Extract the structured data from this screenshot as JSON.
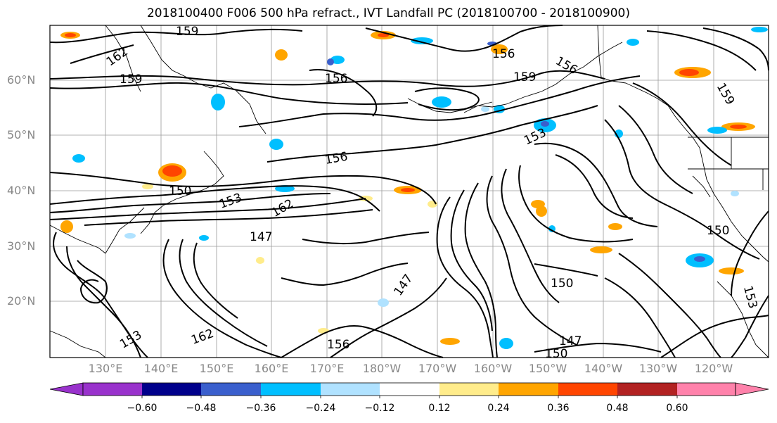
{
  "title": "2018100400 F006 500 hPa refract., IVT Landfall PC (2018100700 - 2018100900)",
  "lat_labels": [
    "60°N",
    "50°N",
    "40°N",
    "30°N",
    "20°N"
  ],
  "lon_labels": [
    "130°E",
    "140°E",
    "150°E",
    "160°E",
    "170°E",
    "180°W",
    "170°W",
    "160°W",
    "150°W",
    "140°W",
    "130°W",
    "120°W"
  ],
  "contour_labels": [
    "159",
    "156",
    "162",
    "159",
    "156",
    "159",
    "153",
    "156",
    "150",
    "153",
    "162",
    "147",
    "150",
    "147",
    "150",
    "147",
    "153",
    "156",
    "162",
    "159",
    "156",
    "150",
    "153"
  ],
  "colorbar": {
    "colors": [
      "#9932cc",
      "#00008b",
      "#3a5fcd",
      "#00bfff",
      "#b0e2ff",
      "#ffffff",
      "#ffec8b",
      "#ffa500",
      "#ff4500",
      "#b22222",
      "#ff82ab"
    ],
    "ticks": [
      "−0.60",
      "−0.48",
      "−0.36",
      "−0.24",
      "−0.12",
      "0.12",
      "0.24",
      "0.36",
      "0.48",
      "0.60"
    ]
  }
}
